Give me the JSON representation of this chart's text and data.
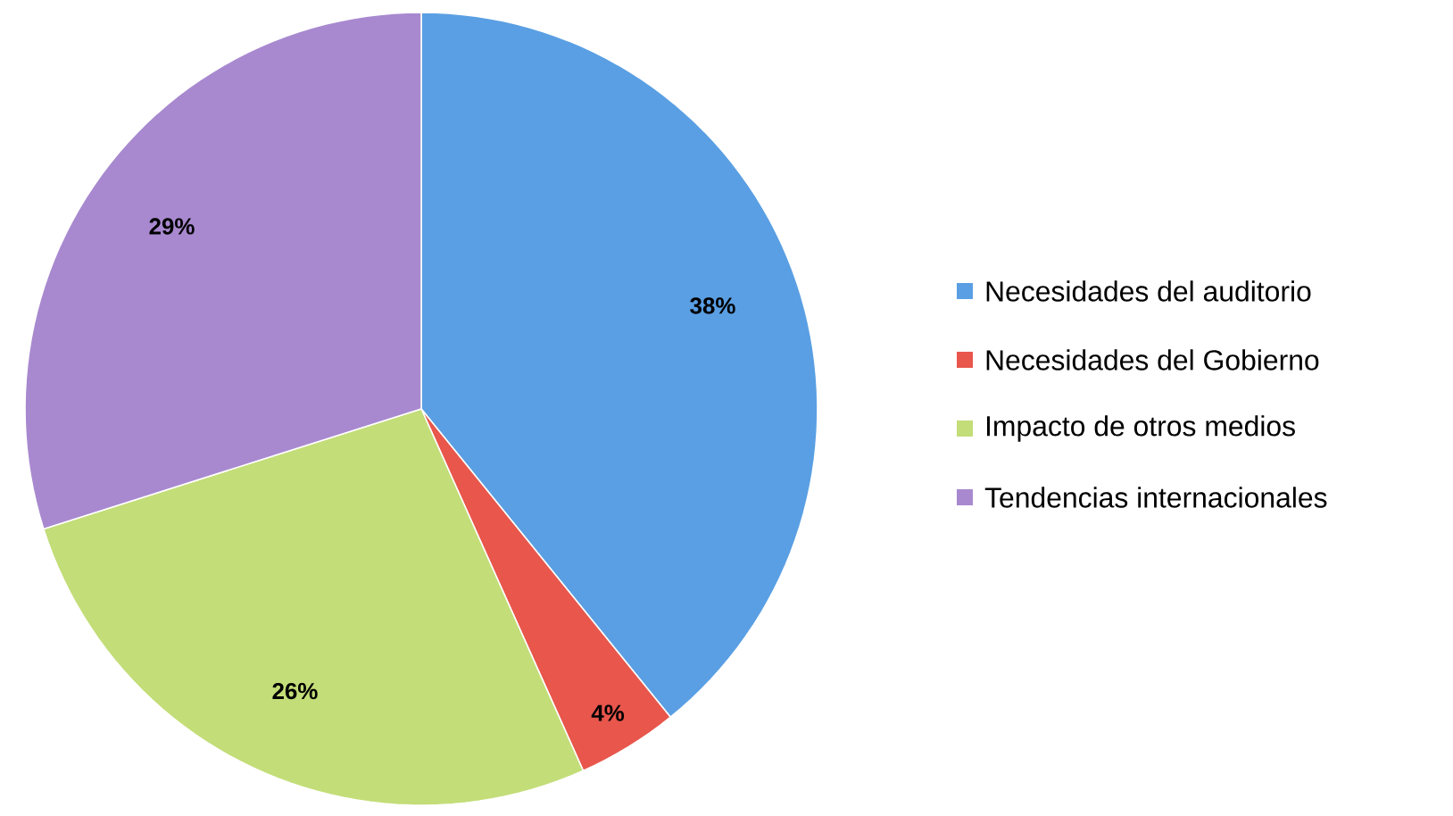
{
  "chart_data": {
    "type": "pie",
    "categories": [
      "Necesidades del auditorio",
      "Necesidades del Gobierno",
      "Impacto de otros medios",
      "Tendencias internacionales"
    ],
    "values": [
      38,
      4,
      26,
      29
    ],
    "colors": [
      "#5a9fe3",
      "#e8564c",
      "#c3dd78",
      "#a889cf"
    ],
    "value_labels": [
      "38%",
      "4%",
      "26%",
      "29%"
    ],
    "legend": "right"
  }
}
